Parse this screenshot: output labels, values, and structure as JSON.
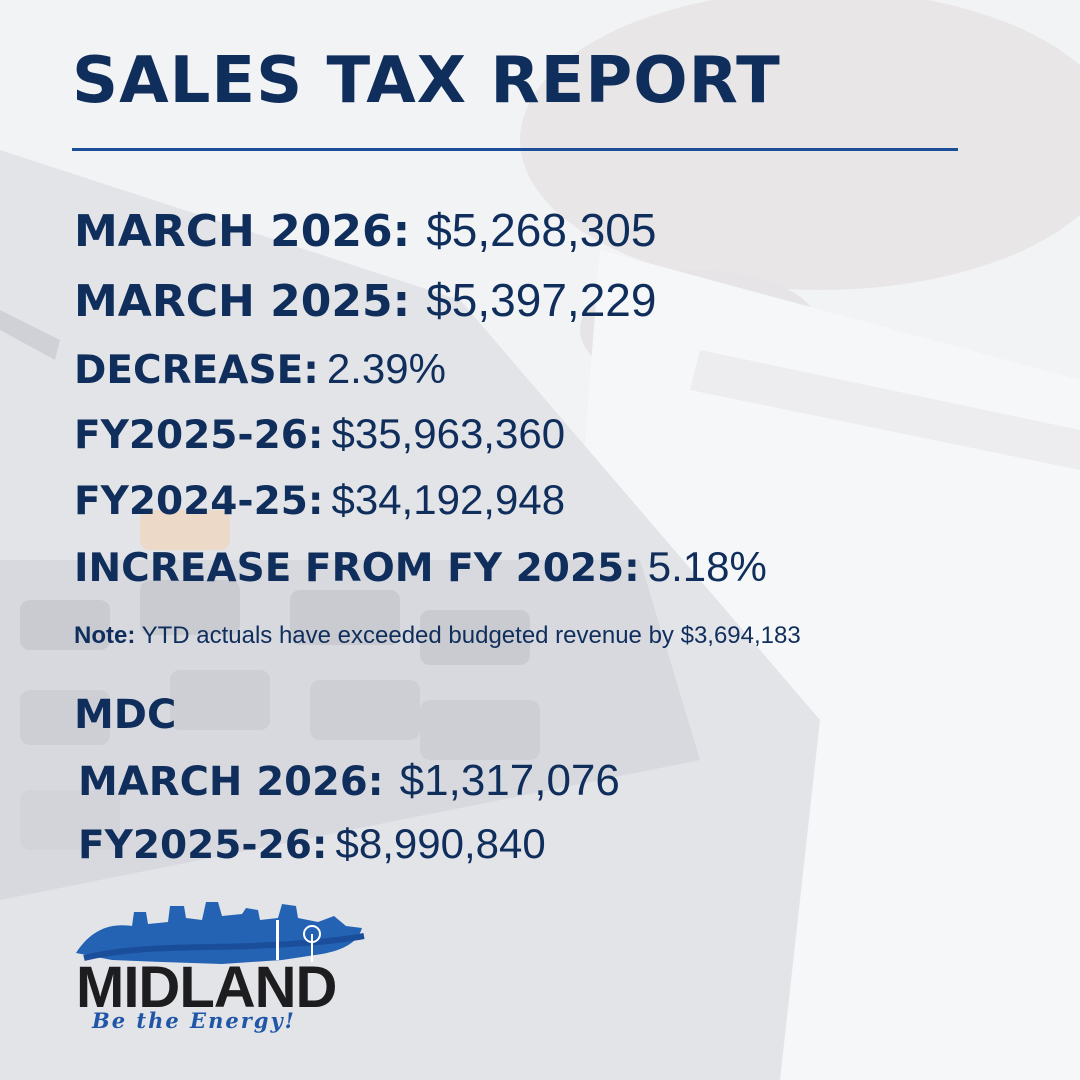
{
  "title": "SALES TAX REPORT",
  "stats": {
    "march_2026": {
      "label": "MARCH 2026:",
      "value": "$5,268,305"
    },
    "march_2025": {
      "label": "MARCH 2025:",
      "value": "$5,397,229"
    },
    "decrease": {
      "label": "DECREASE:",
      "value": "2.39%"
    },
    "fy2025_26": {
      "label": "FY2025-26:",
      "value": "$35,963,360"
    },
    "fy2024_25": {
      "label": "FY2024-25:",
      "value": "$34,192,948"
    },
    "increase": {
      "label": "INCREASE FROM FY 2025:",
      "value": "5.18%"
    }
  },
  "note": {
    "label": "Note:",
    "text": "YTD actuals have exceeded budgeted revenue by $3,694,183"
  },
  "mdc": {
    "heading": "MDC",
    "march_2026": {
      "label": "MARCH 2026:",
      "value": "$1,317,076"
    },
    "fy2025_26": {
      "label": "FY2025-26:",
      "value": "$8,990,840"
    }
  },
  "logo": {
    "wordmark": "MIDLAND",
    "tagline": "Be the Energy!"
  },
  "colors": {
    "navy": "#102e5c",
    "blue": "#1d4e9a",
    "background": "#f1f2f4"
  }
}
